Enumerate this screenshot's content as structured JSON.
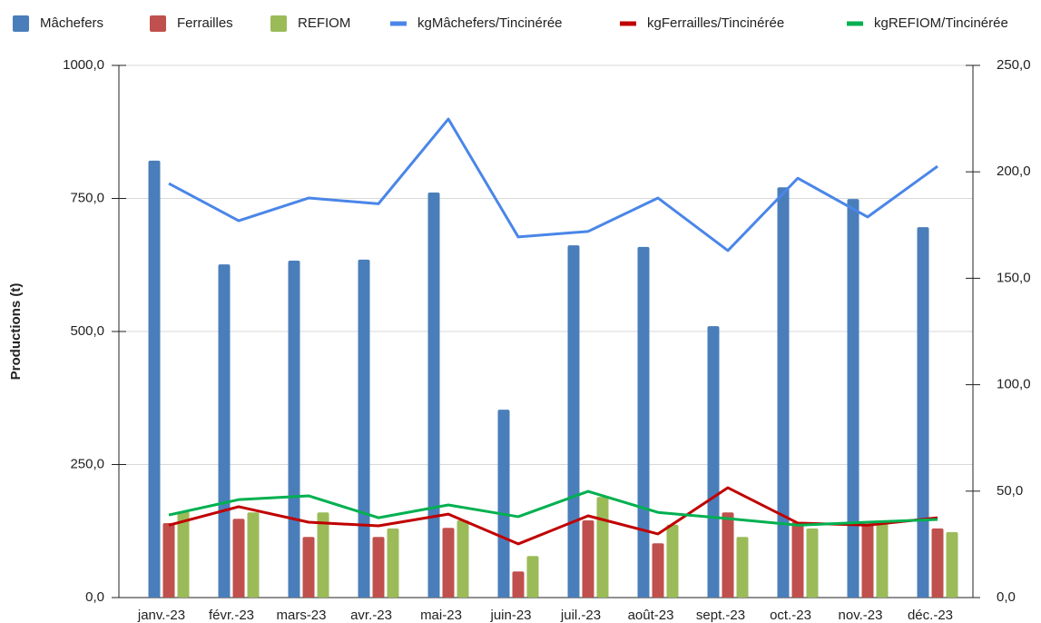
{
  "chart_data": {
    "type": "bar",
    "ylabel": "Productions (t)",
    "categories": [
      "janv.-23",
      "févr.-23",
      "mars-23",
      "avr.-23",
      "mai-23",
      "juin-23",
      "juil.-23",
      "août-23",
      "sept.-23",
      "oct.-23",
      "nov.-23",
      "déc.-23"
    ],
    "series": [
      {
        "name": "Mâchefers",
        "type": "bar",
        "color": "#4a7ebb",
        "values": [
          821,
          626,
          633,
          635,
          761,
          353,
          662,
          659,
          510,
          771,
          749,
          696
        ]
      },
      {
        "name": "Ferrailles",
        "type": "bar",
        "color": "#c0504d",
        "values": [
          140,
          148,
          114,
          114,
          131,
          49,
          145,
          102,
          160,
          142,
          137,
          130
        ]
      },
      {
        "name": "REFIOM",
        "type": "bar",
        "color": "#9bbb59",
        "values": [
          162,
          160,
          160,
          130,
          145,
          78,
          189,
          137,
          114,
          130,
          145,
          123
        ]
      },
      {
        "name": "kgMâchefers/Tincinérée",
        "type": "line",
        "axis": "y2",
        "color": "#4a86e8",
        "values": [
          194.5,
          177,
          187.7,
          185,
          224.8,
          169.4,
          172,
          187.7,
          163,
          197,
          178.8,
          202.6
        ]
      },
      {
        "name": "kgFerrailles/Tincinérée",
        "type": "line",
        "axis": "y2",
        "color": "#c00000",
        "values": [
          34,
          42.7,
          35.4,
          33.7,
          39.2,
          25.2,
          38.4,
          29.9,
          51.6,
          35,
          34,
          37.5
        ]
      },
      {
        "name": "kgREFIOM/Tincinérée",
        "type": "line",
        "axis": "y2",
        "color": "#00b050",
        "values": [
          38.8,
          46,
          47.8,
          37.5,
          43.5,
          38,
          49.9,
          40,
          37.1,
          34,
          35.4,
          36.7
        ]
      }
    ],
    "ylim": [
      0,
      1000
    ],
    "yticks": [
      {
        "value": 0,
        "label": "0,0"
      },
      {
        "value": 250,
        "label": "250,0"
      },
      {
        "value": 500,
        "label": "500,0"
      },
      {
        "value": 750,
        "label": "750,0"
      },
      {
        "value": 1000,
        "label": "1000,0"
      }
    ],
    "y2lim": [
      0,
      250
    ],
    "y2ticks": [
      {
        "value": 0,
        "label": "0,0"
      },
      {
        "value": 50,
        "label": "50,0"
      },
      {
        "value": 100,
        "label": "100,0"
      },
      {
        "value": 150,
        "label": "150,0"
      },
      {
        "value": 200,
        "label": "200,0"
      },
      {
        "value": 250,
        "label": "250,0"
      }
    ],
    "grid": true,
    "legend": "top"
  }
}
